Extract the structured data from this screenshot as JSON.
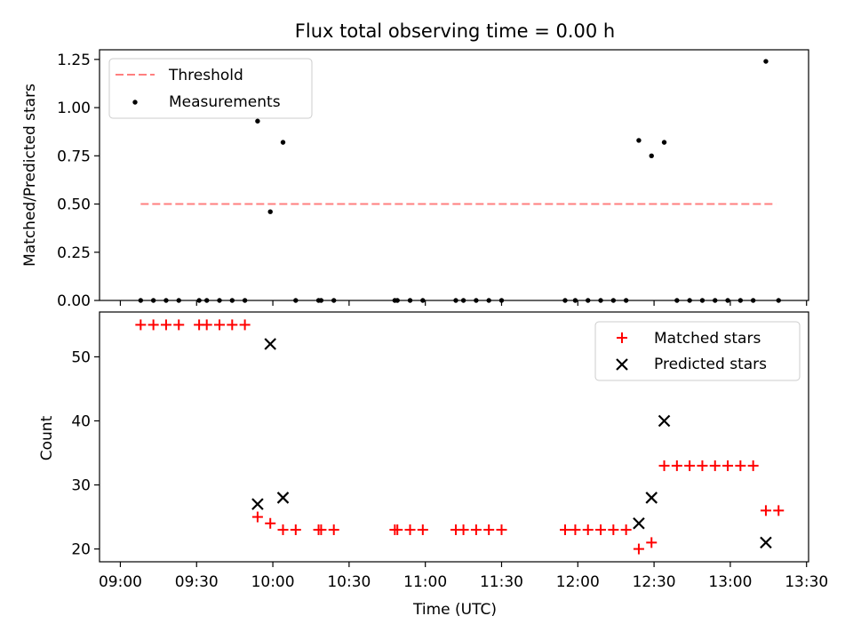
{
  "chart_data": [
    {
      "type": "scatter",
      "title": "Flux total observing time = 0.00 h",
      "xlabel": "",
      "ylabel": "Matched/Predicted stars",
      "xlim": [
        "09:00",
        "13:30"
      ],
      "ylim": [
        0,
        1.3
      ],
      "yticks": [
        "0.00",
        "0.25",
        "0.50",
        "0.75",
        "1.00",
        "1.25"
      ],
      "legend": "top-left",
      "threshold": {
        "name": "Threshold",
        "value": 0.5,
        "from": "09:08",
        "to": "13:18",
        "color": "#ff7f7f",
        "style": "dashed"
      },
      "series": [
        {
          "name": "Measurements",
          "color": "#000000",
          "marker": "dot",
          "points": [
            [
              "09:08",
              0
            ],
            [
              "09:13",
              0
            ],
            [
              "09:18",
              0
            ],
            [
              "09:23",
              0
            ],
            [
              "09:31",
              0
            ],
            [
              "09:34",
              0
            ],
            [
              "09:39",
              0
            ],
            [
              "09:44",
              0
            ],
            [
              "09:49",
              0
            ],
            [
              "09:54",
              0.93
            ],
            [
              "09:59",
              0.46
            ],
            [
              "10:04",
              0.82
            ],
            [
              "10:09",
              0
            ],
            [
              "10:18",
              0
            ],
            [
              "10:19",
              0
            ],
            [
              "10:24",
              0
            ],
            [
              "10:48",
              0
            ],
            [
              "10:49",
              0
            ],
            [
              "10:54",
              0
            ],
            [
              "10:59",
              0
            ],
            [
              "11:12",
              0
            ],
            [
              "11:15",
              0
            ],
            [
              "11:20",
              0
            ],
            [
              "11:25",
              0
            ],
            [
              "11:30",
              0
            ],
            [
              "11:55",
              0
            ],
            [
              "11:59",
              0
            ],
            [
              "12:04",
              0
            ],
            [
              "12:09",
              0
            ],
            [
              "12:14",
              0
            ],
            [
              "12:19",
              0
            ],
            [
              "12:24",
              0.83
            ],
            [
              "12:29",
              0.75
            ],
            [
              "12:34",
              0.82
            ],
            [
              "12:39",
              0
            ],
            [
              "12:44",
              0
            ],
            [
              "12:49",
              0
            ],
            [
              "12:54",
              0
            ],
            [
              "12:59",
              0
            ],
            [
              "13:04",
              0
            ],
            [
              "13:09",
              0
            ],
            [
              "13:14",
              1.24
            ],
            [
              "13:19",
              0
            ]
          ]
        }
      ]
    },
    {
      "type": "scatter",
      "title": "",
      "xlabel": "Time (UTC)",
      "ylabel": "Count",
      "xlim": [
        "09:00",
        "13:30"
      ],
      "ylim": [
        18,
        57
      ],
      "xticks": [
        "09:00",
        "09:30",
        "10:00",
        "10:30",
        "11:00",
        "11:30",
        "12:00",
        "12:30",
        "13:00",
        "13:30"
      ],
      "yticks": [
        "20",
        "30",
        "40",
        "50"
      ],
      "legend": "top-right",
      "series": [
        {
          "name": "Matched stars",
          "color": "#ff0000",
          "marker": "plus",
          "points": [
            [
              "09:08",
              55
            ],
            [
              "09:13",
              55
            ],
            [
              "09:18",
              55
            ],
            [
              "09:23",
              55
            ],
            [
              "09:31",
              55
            ],
            [
              "09:34",
              55
            ],
            [
              "09:39",
              55
            ],
            [
              "09:44",
              55
            ],
            [
              "09:49",
              55
            ],
            [
              "09:54",
              25
            ],
            [
              "09:59",
              24
            ],
            [
              "10:04",
              23
            ],
            [
              "10:09",
              23
            ],
            [
              "10:18",
              23
            ],
            [
              "10:19",
              23
            ],
            [
              "10:24",
              23
            ],
            [
              "10:48",
              23
            ],
            [
              "10:49",
              23
            ],
            [
              "10:54",
              23
            ],
            [
              "10:59",
              23
            ],
            [
              "11:12",
              23
            ],
            [
              "11:15",
              23
            ],
            [
              "11:20",
              23
            ],
            [
              "11:25",
              23
            ],
            [
              "11:30",
              23
            ],
            [
              "11:55",
              23
            ],
            [
              "11:59",
              23
            ],
            [
              "12:04",
              23
            ],
            [
              "12:09",
              23
            ],
            [
              "12:14",
              23
            ],
            [
              "12:19",
              23
            ],
            [
              "12:24",
              20
            ],
            [
              "12:29",
              21
            ],
            [
              "12:34",
              33
            ],
            [
              "12:39",
              33
            ],
            [
              "12:44",
              33
            ],
            [
              "12:49",
              33
            ],
            [
              "12:54",
              33
            ],
            [
              "12:59",
              33
            ],
            [
              "13:04",
              33
            ],
            [
              "13:09",
              33
            ],
            [
              "13:14",
              26
            ],
            [
              "13:19",
              26
            ]
          ]
        },
        {
          "name": "Predicted stars",
          "color": "#000000",
          "marker": "x",
          "points": [
            [
              "09:54",
              27
            ],
            [
              "09:59",
              52
            ],
            [
              "10:04",
              28
            ],
            [
              "12:24",
              24
            ],
            [
              "12:29",
              28
            ],
            [
              "12:34",
              40
            ],
            [
              "13:14",
              21
            ]
          ]
        }
      ]
    }
  ]
}
